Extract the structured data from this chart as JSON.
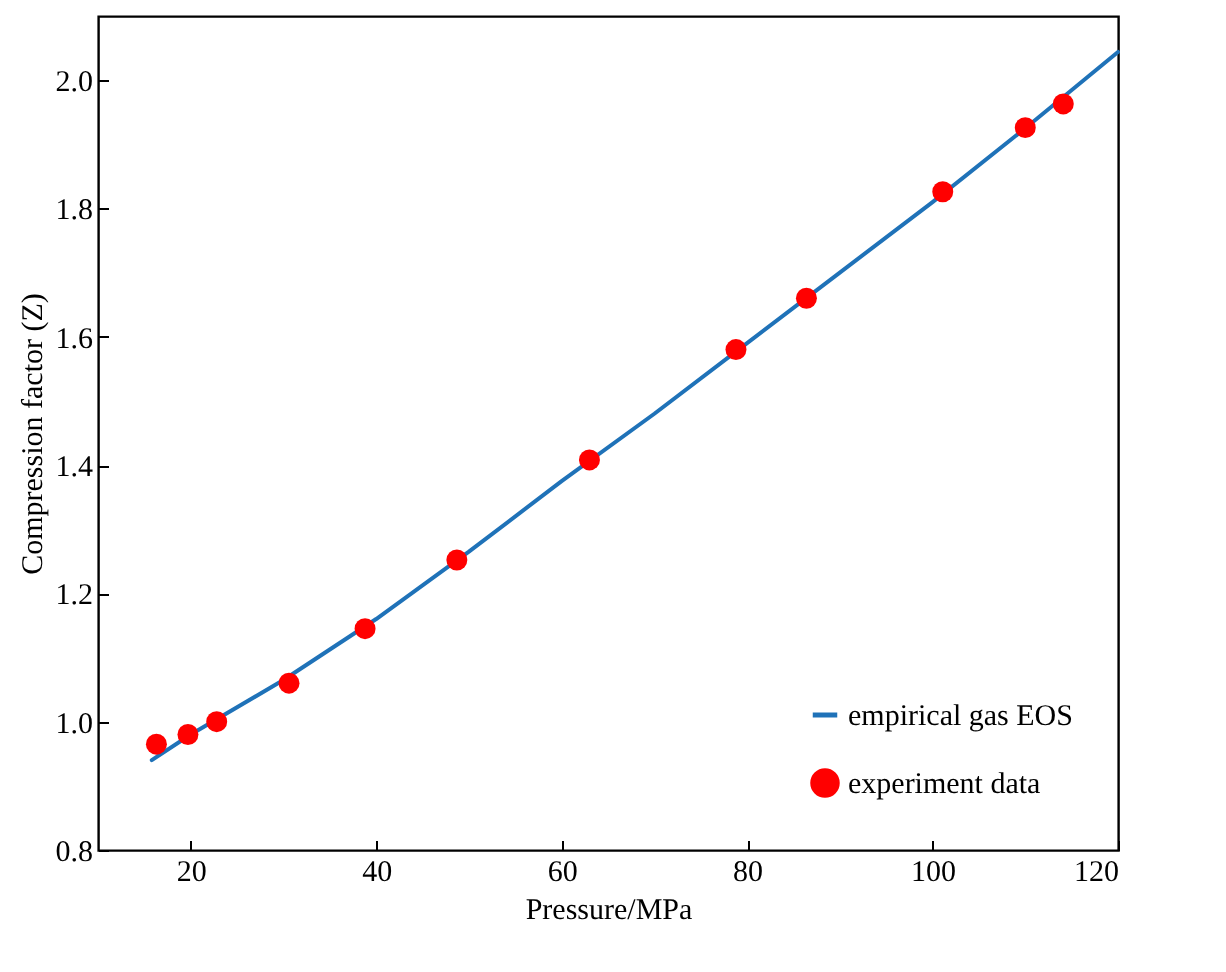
{
  "chart_data": {
    "type": "scatter",
    "xlabel": "Pressure/MPa",
    "ylabel": "Compression factor (Z)",
    "xlim": [
      10,
      120
    ],
    "ylim": [
      0.8,
      2.1
    ],
    "xticks": [
      20,
      40,
      60,
      80,
      100,
      120
    ],
    "yticks": [
      0.8,
      {
        "value": 1,
        "label": "1.0"
      },
      1.2,
      1.4,
      1.6,
      1.8,
      {
        "value": 2,
        "label": "2.0"
      }
    ],
    "grid": false,
    "legend": "bottom right",
    "marker": "circle",
    "series": [
      {
        "name": "empirical gas EOS",
        "type": "line",
        "marker": "none",
        "color": "#1f72b8",
        "x": [
          15.8,
          20,
          30,
          40,
          50,
          60,
          70,
          80,
          90,
          100,
          110,
          120
        ],
        "values": [
          0.94,
          0.98,
          1.065,
          1.16,
          1.265,
          1.375,
          1.48,
          1.59,
          1.7,
          1.81,
          1.925,
          2.044
        ]
      },
      {
        "name": "experiment data",
        "color": "#ff0000",
        "x": [
          16.3,
          19.7,
          22.8,
          30.6,
          38.8,
          48.7,
          63,
          78.8,
          86.4,
          101.1,
          110,
          114.1
        ],
        "values": [
          0.965,
          0.98,
          1.0,
          1.06,
          1.145,
          1.252,
          1.408,
          1.58,
          1.66,
          1.826,
          1.926,
          1.963
        ]
      }
    ]
  }
}
